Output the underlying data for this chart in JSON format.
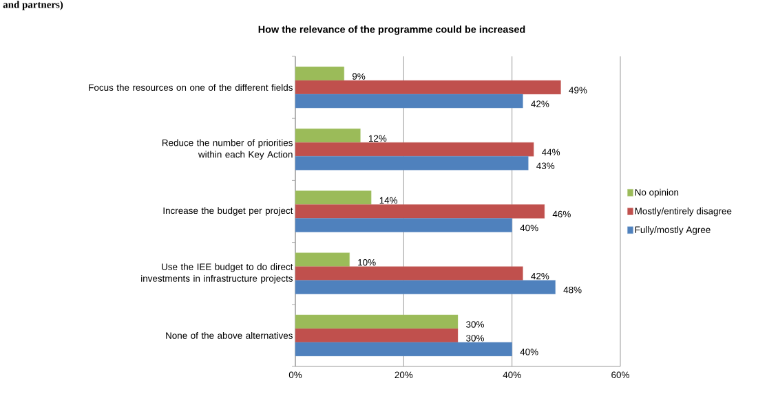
{
  "chart_data": {
    "type": "bar",
    "orientation": "horizontal",
    "title": "How the relevance of the programme could be increased",
    "annotations": [
      "and partners)"
    ],
    "categories": [
      "Focus the resources on one of the different fields",
      "Reduce the number of priorities within each Key Action",
      "Increase the budget per project",
      "Use the IEE budget to do direct investments in infrastructure projects",
      "None of the above alternatives"
    ],
    "series": [
      {
        "name": "No opinion",
        "color": "#9bbb59",
        "values": [
          9,
          12,
          14,
          10,
          30
        ],
        "value_labels": [
          "9%",
          "12%",
          "14%",
          "10%",
          "30%"
        ]
      },
      {
        "name": "Mostly/entirely disagree",
        "color": "#c0504d",
        "values": [
          49,
          44,
          46,
          42,
          30
        ],
        "value_labels": [
          "49%",
          "44%",
          "46%",
          "42%",
          "30%"
        ]
      },
      {
        "name": "Fully/mostly Agree",
        "color": "#4f81bd",
        "values": [
          42,
          43,
          40,
          48,
          40
        ],
        "value_labels": [
          "42%",
          "43%",
          "40%",
          "48%",
          "40%"
        ]
      }
    ],
    "xlim": [
      0,
      60
    ],
    "xticks": [
      {
        "value": 0,
        "label": "0%"
      },
      {
        "value": 20,
        "label": "20%"
      },
      {
        "value": 40,
        "label": "40%"
      },
      {
        "value": 60,
        "label": "60%"
      }
    ],
    "grid": "x",
    "legend": "right"
  }
}
